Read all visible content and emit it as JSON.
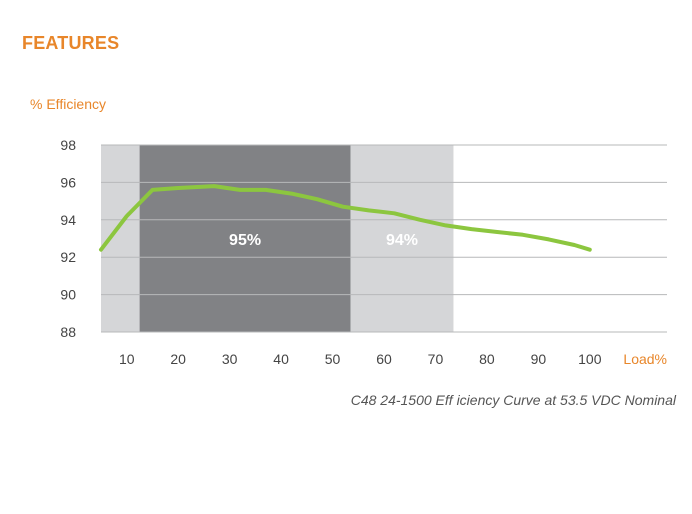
{
  "header": {
    "title": "FEATURES"
  },
  "colors": {
    "accent": "#e8862a",
    "line": "#8cc63f",
    "band_light": "#d5d6d8",
    "band_dark": "#818285",
    "grid": "#b7b8ba",
    "tick_text": "#444444"
  },
  "chart_data": {
    "type": "line",
    "title": "C48 24-1500 Eff iciency Curve at 53.5 VDC Nominal",
    "ylabel": "% Efficiency",
    "xlabel": "Load%",
    "ylim": [
      88,
      98
    ],
    "xlim": [
      5,
      115
    ],
    "yticks": [
      88,
      90,
      92,
      94,
      96,
      98
    ],
    "ytick_labels": [
      "88",
      "90",
      "92",
      "94",
      "96",
      "98"
    ],
    "xticks": [
      10,
      20,
      30,
      40,
      50,
      60,
      70,
      80,
      90,
      100
    ],
    "xtick_labels": [
      "10",
      "20",
      "30",
      "40",
      "50",
      "60",
      "70",
      "80",
      "90",
      "100"
    ],
    "grid": true,
    "bands": [
      {
        "name": "light-left",
        "x0": 5,
        "x1": 12.5,
        "label": "",
        "shade": "light"
      },
      {
        "name": "dark-95",
        "x0": 12.5,
        "x1": 53.5,
        "label": "95%",
        "shade": "dark"
      },
      {
        "name": "light-94",
        "x0": 53.5,
        "x1": 73.5,
        "label": "94%",
        "shade": "light"
      }
    ],
    "series": [
      {
        "name": "Efficiency",
        "x": [
          5,
          10,
          15,
          20,
          27,
          32,
          37,
          42,
          47,
          52,
          57,
          62,
          67,
          72,
          77,
          82,
          87,
          92,
          97,
          100
        ],
        "values": [
          92.4,
          94.2,
          95.6,
          95.7,
          95.8,
          95.6,
          95.6,
          95.4,
          95.1,
          94.7,
          94.5,
          94.35,
          94.0,
          93.7,
          93.5,
          93.35,
          93.2,
          92.95,
          92.65,
          92.4
        ]
      }
    ]
  }
}
